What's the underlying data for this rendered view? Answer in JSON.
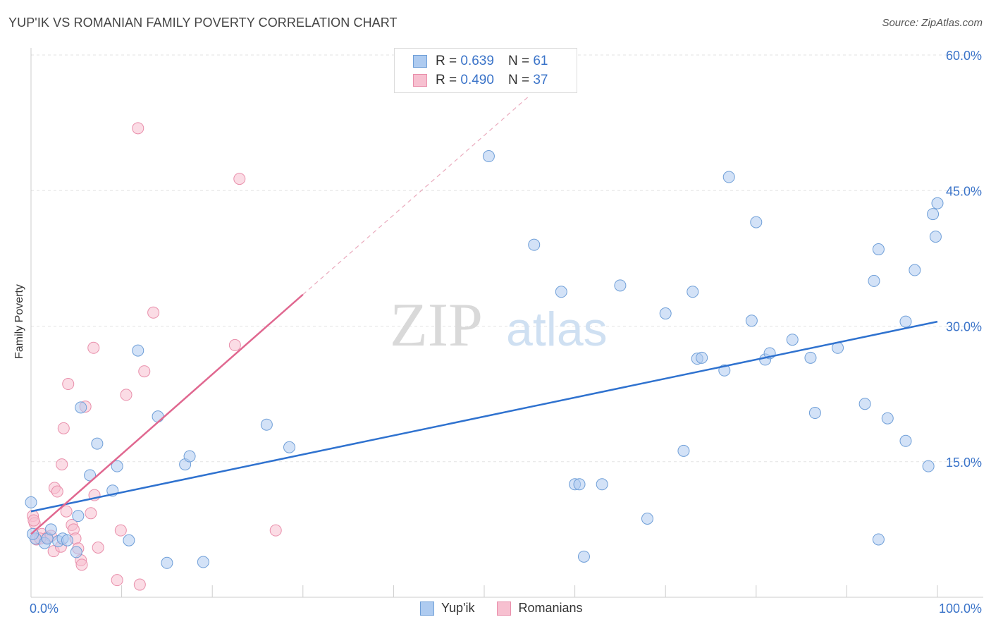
{
  "header": {
    "title": "YUP'IK VS ROMANIAN FAMILY POVERTY CORRELATION CHART",
    "source": "Source: ZipAtlas.com"
  },
  "watermark": {
    "zip": "ZIP",
    "atlas": "atlas"
  },
  "legend": {
    "rows": [
      {
        "r_label": "R =",
        "r_value": "0.639",
        "n_label": "N =",
        "n_value": "61"
      },
      {
        "r_label": "R =",
        "r_value": "0.490",
        "n_label": "N =",
        "n_value": "37"
      }
    ]
  },
  "bottom_legend": {
    "series1": "Yup'ik",
    "series2": "Romanians"
  },
  "colors": {
    "blue_fill": "#aecbf0",
    "blue_stroke": "#6f9fd8",
    "blue_line": "#2f72cf",
    "pink_fill": "#f7c0d0",
    "pink_stroke": "#e98fab",
    "pink_line": "#e06890",
    "tick_text": "#3b74c9"
  },
  "chart_data": {
    "type": "scatter",
    "title": "YUP'IK VS ROMANIAN FAMILY POVERTY CORRELATION CHART",
    "xlabel": "",
    "ylabel": "Family Poverty",
    "xlim": [
      0,
      100
    ],
    "ylim": [
      0,
      60
    ],
    "x_tick_labels": [
      "0.0%",
      "100.0%"
    ],
    "y_ticks": [
      15,
      30,
      45,
      60
    ],
    "y_tick_labels": [
      "15.0%",
      "30.0%",
      "45.0%",
      "60.0%"
    ],
    "grid": true,
    "series": [
      {
        "name": "Yup'ik",
        "r": 0.639,
        "n": 61,
        "trend": {
          "x0": 0,
          "y0": 9.5,
          "x1": 100,
          "y1": 30.5
        },
        "points": [
          [
            0,
            10.5
          ],
          [
            0.5,
            6.5
          ],
          [
            1.5,
            6
          ],
          [
            1.8,
            6.5
          ],
          [
            2.2,
            7.5
          ],
          [
            3,
            6.2
          ],
          [
            3.5,
            6.5
          ],
          [
            4,
            6.3
          ],
          [
            5,
            5
          ],
          [
            5.2,
            9
          ],
          [
            5.5,
            21
          ],
          [
            6.5,
            13.5
          ],
          [
            7.3,
            17
          ],
          [
            9,
            11.8
          ],
          [
            9.5,
            14.5
          ],
          [
            10.8,
            6.3
          ],
          [
            11.8,
            27.3
          ],
          [
            14,
            20
          ],
          [
            15,
            3.8
          ],
          [
            17,
            14.7
          ],
          [
            17.5,
            15.6
          ],
          [
            19,
            3.9
          ],
          [
            26,
            19.1
          ],
          [
            28.5,
            16.6
          ],
          [
            50.5,
            48.8
          ],
          [
            55.5,
            39
          ],
          [
            58.5,
            33.8
          ],
          [
            60,
            12.5
          ],
          [
            60.5,
            12.5
          ],
          [
            61,
            4.5
          ],
          [
            63,
            12.5
          ],
          [
            65,
            34.5
          ],
          [
            68,
            8.7
          ],
          [
            70,
            31.4
          ],
          [
            72,
            16.2
          ],
          [
            73,
            33.8
          ],
          [
            73.5,
            26.4
          ],
          [
            74,
            26.5
          ],
          [
            76.5,
            25.1
          ],
          [
            77,
            46.5
          ],
          [
            79.5,
            30.6
          ],
          [
            80,
            41.5
          ],
          [
            81,
            26.3
          ],
          [
            81.5,
            27
          ],
          [
            84,
            28.5
          ],
          [
            86,
            26.5
          ],
          [
            86.5,
            20.4
          ],
          [
            89,
            27.6
          ],
          [
            92,
            21.4
          ],
          [
            93,
            35
          ],
          [
            93.5,
            38.5
          ],
          [
            93.5,
            6.4
          ],
          [
            94.5,
            19.8
          ],
          [
            96.5,
            30.5
          ],
          [
            96.5,
            17.3
          ],
          [
            97.5,
            36.2
          ],
          [
            99,
            14.5
          ],
          [
            99.5,
            42.4
          ],
          [
            99.8,
            39.9
          ],
          [
            100,
            43.6
          ],
          [
            0.2,
            7
          ]
        ]
      },
      {
        "name": "Romanians",
        "r": 0.49,
        "n": 37,
        "trend": {
          "x0": 0,
          "y0": 7,
          "x1": 30,
          "y1": 33.5
        },
        "trend_extension": {
          "x0": 30,
          "y0": 33.5,
          "x1": 55,
          "y1": 55.5
        },
        "points": [
          [
            0.2,
            9
          ],
          [
            0.4,
            8.2
          ],
          [
            0.6,
            6.4
          ],
          [
            1.2,
            7
          ],
          [
            1.8,
            6.6
          ],
          [
            2.2,
            6.8
          ],
          [
            2.5,
            5.1
          ],
          [
            2.6,
            12.1
          ],
          [
            2.9,
            11.7
          ],
          [
            3.3,
            5.6
          ],
          [
            3.4,
            14.7
          ],
          [
            3.6,
            18.7
          ],
          [
            3.9,
            9.5
          ],
          [
            4.1,
            23.6
          ],
          [
            4.5,
            8
          ],
          [
            4.7,
            7.5
          ],
          [
            4.9,
            6.5
          ],
          [
            5.2,
            5.4
          ],
          [
            5.5,
            4.1
          ],
          [
            5.6,
            3.6
          ],
          [
            6,
            21.1
          ],
          [
            6.6,
            9.3
          ],
          [
            6.9,
            27.6
          ],
          [
            7,
            11.3
          ],
          [
            7.4,
            5.5
          ],
          [
            9.5,
            1.9
          ],
          [
            9.9,
            7.4
          ],
          [
            10.5,
            22.4
          ],
          [
            11.8,
            51.9
          ],
          [
            12,
            1.4
          ],
          [
            12.5,
            25
          ],
          [
            13.5,
            31.5
          ],
          [
            22.5,
            27.9
          ],
          [
            23,
            46.3
          ],
          [
            27,
            7.4
          ],
          [
            0.3,
            8.5
          ],
          [
            1,
            6.5
          ]
        ]
      }
    ]
  }
}
